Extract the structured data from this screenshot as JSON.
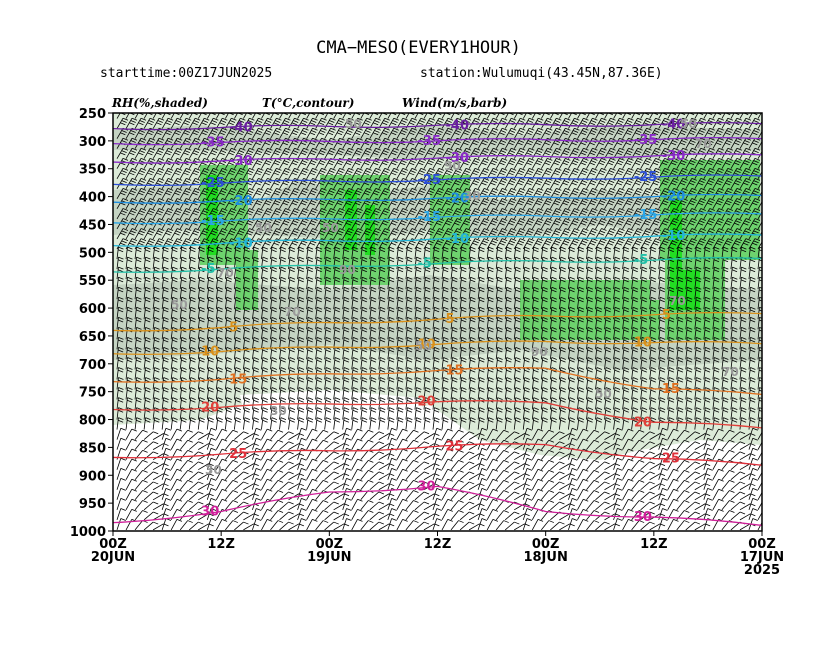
{
  "header": {
    "title": "CMA−MESO(EVERY1HOUR)",
    "starttime": "starttime:00Z17JUN2025",
    "station": "station:Wulumuqi(43.45N,87.36E)"
  },
  "legend_labels": {
    "rh": "RH(%,shaded)",
    "temp": "T(°C,contour)",
    "wind": "Wind(m/s,barb)"
  },
  "colors": {
    "rh_light": "#dcebd8",
    "rh_mid": "#c2d2c1",
    "rh_green": "#6ed36e",
    "rh_bright": "#22dd22",
    "barb": "#000000",
    "rh_contour": "#b0b0b0"
  },
  "chart_data": {
    "type": "heatmap",
    "ylabel": "",
    "xlabel": "",
    "y_axis": {
      "kind": "pressure",
      "ticks": [
        250,
        300,
        350,
        400,
        450,
        500,
        550,
        600,
        650,
        700,
        750,
        800,
        850,
        900,
        950,
        1000
      ],
      "range": [
        1000,
        250
      ]
    },
    "x_axis": {
      "ticks": [
        {
          "time": "00Z20JUN",
          "lines": [
            "00Z",
            "20JUN"
          ]
        },
        {
          "time": "12Z19JUN",
          "lines": [
            "12Z"
          ]
        },
        {
          "time": "00Z19JUN",
          "lines": [
            "00Z",
            "19JUN"
          ]
        },
        {
          "time": "12Z18JUN",
          "lines": [
            "12Z"
          ]
        },
        {
          "time": "00Z18JUN",
          "lines": [
            "00Z",
            "18JUN"
          ]
        },
        {
          "time": "12Z17JUN",
          "lines": [
            "12Z"
          ]
        },
        {
          "time": "00Z17JUN2025",
          "lines": [
            "00Z",
            "17JUN",
            "2025"
          ]
        }
      ]
    },
    "temperature_contours": [
      {
        "value": -40,
        "label": "-40",
        "color": "#6a1fa0",
        "levels": [
          278,
          276,
          274,
          272,
          271,
          271,
          269
        ]
      },
      {
        "value": -35,
        "label": "-35",
        "color": "#8a2bc8",
        "levels": [
          305,
          303,
          301,
          300,
          298,
          298,
          296
        ]
      },
      {
        "value": -30,
        "label": "-30",
        "color": "#8a2bc8",
        "levels": [
          338,
          336,
          333,
          331,
          328,
          327,
          325
        ]
      },
      {
        "value": -25,
        "label": "-25",
        "color": "#2c4fd8",
        "levels": [
          378,
          376,
          372,
          370,
          367,
          365,
          363
        ]
      },
      {
        "value": -20,
        "label": "-20",
        "color": "#1e8ee0",
        "levels": [
          410,
          408,
          405,
          403,
          401,
          400,
          398
        ]
      },
      {
        "value": -15,
        "label": "-15",
        "color": "#2aa6e8",
        "levels": [
          447,
          444,
          440,
          437,
          435,
          433,
          431
        ]
      },
      {
        "value": -10,
        "label": "-10",
        "color": "#22b5d8",
        "levels": [
          488,
          484,
          479,
          476,
          473,
          471,
          469
        ]
      },
      {
        "value": -5,
        "label": "-5",
        "color": "#22c0a8",
        "levels": [
          535,
          530,
          524,
          520,
          516,
          514,
          511
        ]
      },
      {
        "value": 5,
        "label": "5",
        "color": "#d9901a",
        "levels": [
          640,
          635,
          626,
          620,
          614,
          612,
          610
        ]
      },
      {
        "value": 10,
        "label": "10",
        "color": "#d9901a",
        "levels": [
          682,
          678,
          670,
          665,
          660,
          662,
          664
        ]
      },
      {
        "value": 15,
        "label": "15",
        "color": "#e07020",
        "levels": [
          732,
          728,
          718,
          712,
          708,
          745,
          755
        ]
      },
      {
        "value": 20,
        "label": "20",
        "color": "#e0403a",
        "levels": [
          782,
          778,
          772,
          768,
          770,
          805,
          815
        ]
      },
      {
        "value": 25,
        "label": "25",
        "color": "#e0303a",
        "levels": [
          868,
          862,
          856,
          848,
          845,
          870,
          882
        ]
      },
      {
        "value": 30,
        "label": "30",
        "color": "#d0209a",
        "levels": [
          985,
          965,
          930,
          920,
          965,
          975,
          990
        ]
      }
    ],
    "rh_contour_labels": [
      "30",
      "50",
      "70",
      "90"
    ],
    "wind_barbs": "barbs shown at every model hour and pressure level"
  }
}
